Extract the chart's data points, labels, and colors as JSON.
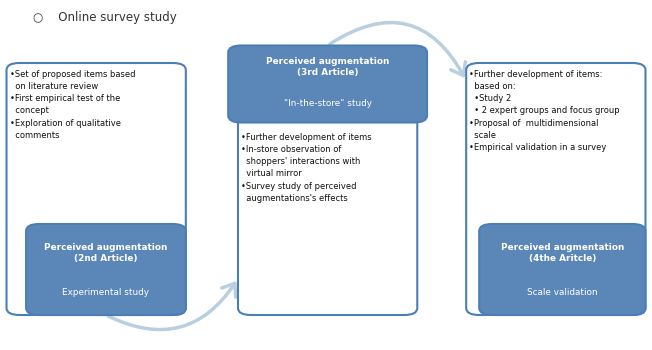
{
  "bg_color": "#ffffff",
  "arrow_color": "#b8cfe0",
  "box_fill_dark": "#5b86b8",
  "box_border_color": "#4a7fb5",
  "title": "Online survey study",
  "left_text": "•Set of proposed items based\n  on literature review\n•First empirical test of the\n  concept\n•Exploration of qualitative\n  comments",
  "center_text": "•Further development of items\n•In-store observation of\n  shoppers' interactions with\n  virtual mirror\n•Survey study of perceived\n  augmentations's effects",
  "right_text": "•Further development of items:\n  based on:\n  •Study 2\n  • 2 expert groups and focus group\n•Proposal of  multidimensional\n  scale\n•Empirical validation in a survey",
  "box1_label_line1": "Perceived augmentation",
  "box1_label_line2": "(2nd Article)",
  "box1_label_line3": "Experimental study",
  "box2_header_line1": "Perceived augmentation",
  "box2_header_line2": "(3rd Article)",
  "box2_header_line3": "\"In-the-store\" study",
  "box3_label_line1": "Perceived augmentation",
  "box3_label_line2": "(4the Aritcle)",
  "box3_label_line3": "Scale validation"
}
